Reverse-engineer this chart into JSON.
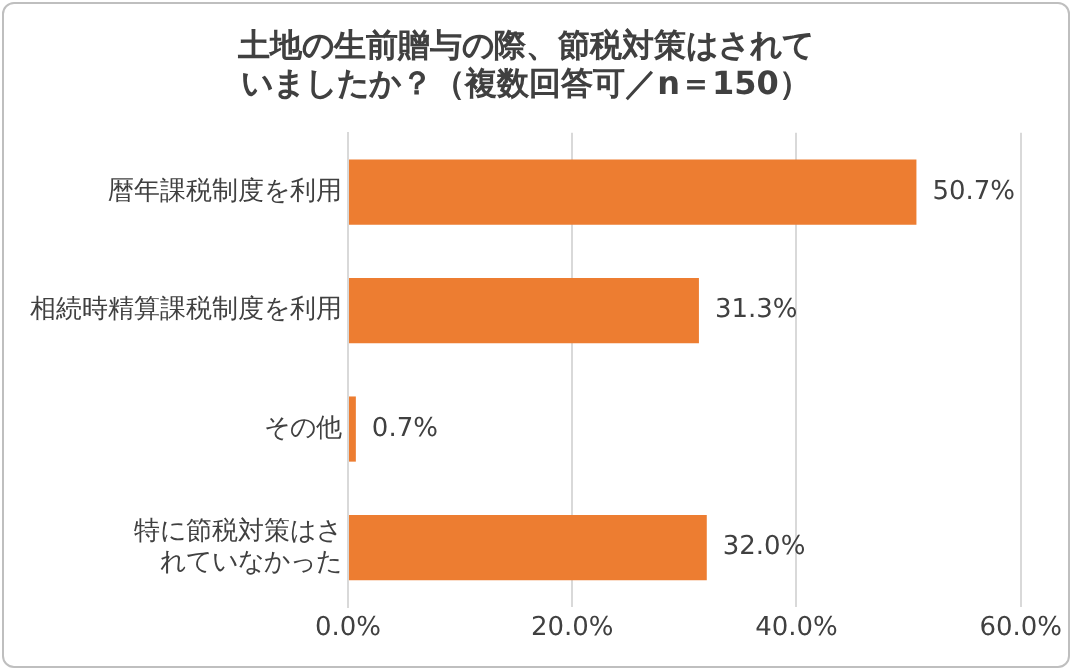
{
  "chart_data": {
    "type": "bar",
    "orientation": "horizontal",
    "title": "土地の生前贈与の際、節税対策はされていましたか？（複数回答可／n＝150）",
    "categories": [
      "暦年課税制度を利用",
      "相続時精算課税制度を利用",
      "その他",
      "特に節税対策はされていなかった"
    ],
    "values": [
      50.7,
      31.3,
      0.7,
      32.0
    ],
    "color": "#ed7d31",
    "value_labels": [
      "50.7%",
      "31.3%",
      "0.7%",
      "32.0%"
    ],
    "xlim": [
      0,
      60
    ],
    "xticks": [
      {
        "value": 0,
        "label": "0.0%"
      },
      {
        "value": 20,
        "label": "20.0%"
      },
      {
        "value": 40,
        "label": "40.0%"
      },
      {
        "value": 60,
        "label": "60.0%"
      }
    ],
    "grid": "x",
    "legend": false
  }
}
